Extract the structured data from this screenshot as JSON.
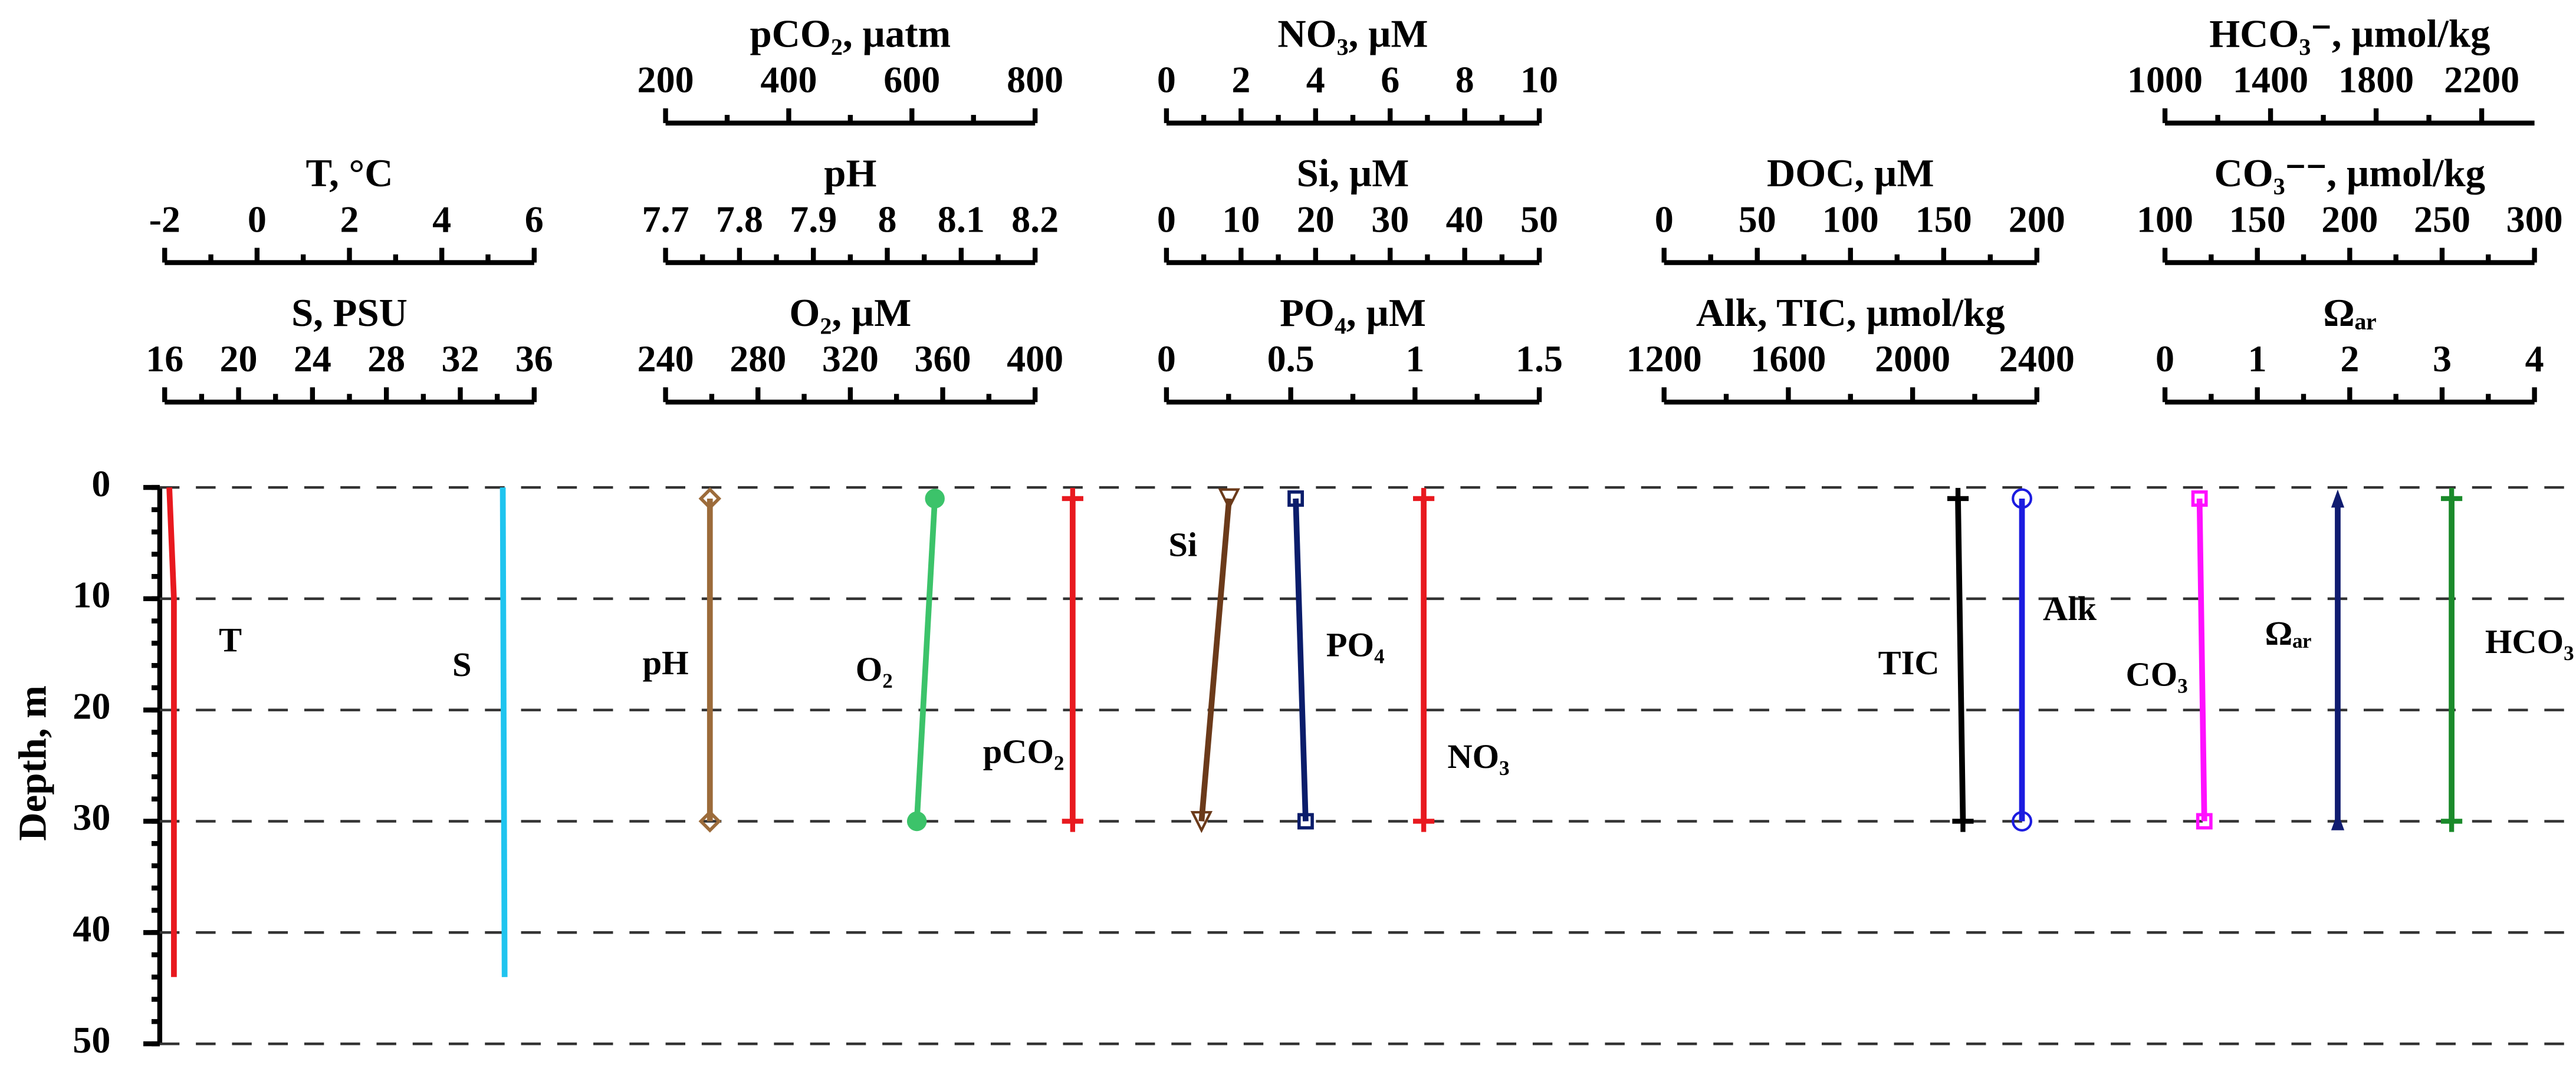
{
  "chart_data": {
    "type": "profile",
    "ylabel": "Depth, m",
    "ylim": [
      0,
      50
    ],
    "yticks": [
      0,
      10,
      20,
      30,
      40,
      50
    ],
    "grid": true,
    "axes": [
      {
        "label": "pCO₂, µatm",
        "xlim": [
          200,
          800
        ],
        "xticks": [
          200,
          400,
          600,
          800
        ]
      },
      {
        "label": "NO₃, µM",
        "xlim": [
          0,
          10
        ],
        "xticks": [
          0,
          2,
          4,
          6,
          8,
          10
        ]
      },
      {
        "label": "HCO₃⁻, µmol/kg",
        "xlim": [
          1000,
          2400
        ],
        "xticks": [
          1000,
          1400,
          1800,
          2200
        ]
      },
      {
        "label": "T, °C",
        "xlim": [
          -2,
          6
        ],
        "xticks": [
          -2,
          0,
          2,
          4,
          6
        ]
      },
      {
        "label": "pH",
        "xlim": [
          7.7,
          8.2
        ],
        "xticks": [
          7.7,
          7.8,
          7.9,
          8,
          8.1,
          8.2
        ]
      },
      {
        "label": "Si, µM",
        "xlim": [
          0,
          50
        ],
        "xticks": [
          0,
          10,
          20,
          30,
          40,
          50
        ]
      },
      {
        "label": "DOC, µM",
        "xlim": [
          0,
          200
        ],
        "xticks": [
          0,
          50,
          100,
          150,
          200
        ]
      },
      {
        "label": "CO₃⁻⁻, µmol/kg",
        "xlim": [
          100,
          300
        ],
        "xticks": [
          100,
          150,
          200,
          250,
          300
        ]
      },
      {
        "label": "S, PSU",
        "xlim": [
          16,
          36
        ],
        "xticks": [
          16,
          20,
          24,
          28,
          32,
          36
        ]
      },
      {
        "label": "O₂, µM",
        "xlim": [
          240,
          400
        ],
        "xticks": [
          240,
          280,
          320,
          360,
          400
        ]
      },
      {
        "label": "PO₄, µM",
        "xlim": [
          0,
          1.5
        ],
        "xticks": [
          0,
          0.5,
          1,
          1.5
        ]
      },
      {
        "label": "Alk, TIC, µmol/kg",
        "xlim": [
          1200,
          2400
        ],
        "xticks": [
          1200,
          1600,
          2000,
          2400
        ]
      },
      {
        "label": "Ωₐᵣ",
        "xlim": [
          0,
          4
        ],
        "xticks": [
          0,
          1,
          2,
          3,
          4
        ]
      }
    ],
    "series": [
      {
        "name": "T",
        "color": "#e8191f",
        "marker": "none",
        "axis": 3,
        "depth": [
          0,
          10,
          44
        ],
        "values": [
          -1.9,
          -1.8,
          -1.8
        ]
      },
      {
        "name": "S",
        "color": "#1fc4ef",
        "marker": "none",
        "axis": 8,
        "depth": [
          0,
          44
        ],
        "values": [
          34.3,
          34.4
        ]
      },
      {
        "name": "pH",
        "color": "#9c6b3a",
        "marker": "diamond",
        "axis": 4,
        "depth": [
          1,
          30
        ],
        "values": [
          7.76,
          7.76
        ]
      },
      {
        "name": "O₂",
        "color": "#3cc36a",
        "marker": "circle",
        "axis": 9,
        "depth": [
          1,
          30
        ],
        "values": [
          356.6,
          348.8
        ]
      },
      {
        "name": "pCO₂",
        "color": "#e8191f",
        "marker": "plus",
        "axis": 0,
        "depth": [
          1,
          30
        ],
        "values": [
          861,
          861
        ]
      },
      {
        "name": "Si",
        "color": "#6b3a1a",
        "marker": "triangle-down",
        "axis": 5,
        "depth": [
          1,
          30
        ],
        "values": [
          8.4,
          4.7
        ]
      },
      {
        "name": "PO₄",
        "color": "#0b1d6b",
        "marker": "square",
        "axis": 10,
        "depth": [
          1,
          30
        ],
        "values": [
          0.52,
          0.56
        ]
      },
      {
        "name": "NO₃",
        "color": "#e8191f",
        "marker": "plus",
        "axis": 1,
        "depth": [
          1,
          30
        ],
        "values": [
          6.9,
          6.9
        ]
      },
      {
        "name": "TIC",
        "color": "#000000",
        "marker": "plus",
        "axis": 11,
        "depth": [
          1,
          30
        ],
        "values": [
          2146,
          2162
        ]
      },
      {
        "name": "Alk",
        "color": "#1b1be0",
        "marker": "circle-open",
        "axis": 11,
        "depth": [
          1,
          30
        ],
        "values": [
          2352,
          2352
        ]
      },
      {
        "name": "CO₃",
        "color": "#ff10ff",
        "marker": "square",
        "axis": 7,
        "depth": [
          1,
          30
        ],
        "values": [
          118.7,
          121.3
        ]
      },
      {
        "name": "Ωₐᵣ",
        "color": "#101c70",
        "marker": "triangle-up",
        "axis": 12,
        "depth": [
          1,
          30
        ],
        "values": [
          1.87,
          1.87
        ]
      },
      {
        "name": "HCO₃",
        "color": "#1a8a2a",
        "marker": "plus",
        "axis": 2,
        "depth": [
          1,
          30
        ],
        "values": [
          2086,
          2086
        ]
      }
    ]
  }
}
